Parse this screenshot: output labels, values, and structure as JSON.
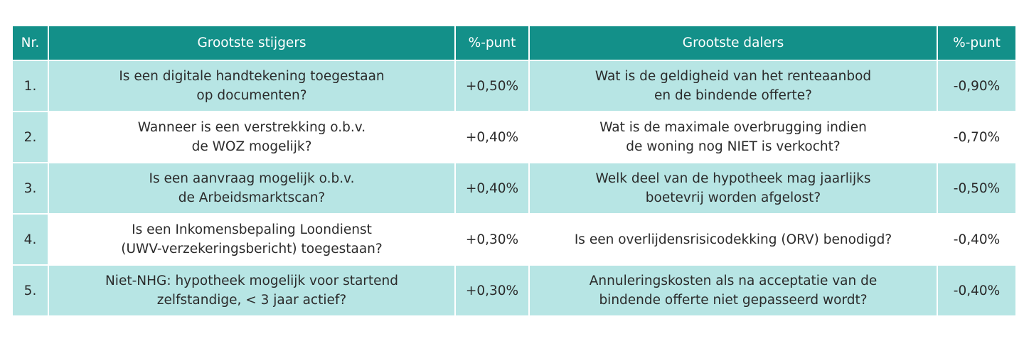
{
  "header": {
    "nr": "Nr.",
    "stijgers": "Grootste stijgers",
    "punt1": "%-punt",
    "dalers": "Grootste dalers",
    "punt2": "%-punt"
  },
  "rows": [
    {
      "nr": "1.",
      "stijger_line1": "Is een digitale handtekening toegestaan",
      "stijger_line2": "op documenten?",
      "stijger_pct": "+0,50%",
      "daler_line1": "Wat is de geldigheid van het renteaanbod",
      "daler_line2": "en de bindende offerte?",
      "daler_pct": "-0,90%"
    },
    {
      "nr": "2.",
      "stijger_line1": "Wanneer is een verstrekking o.b.v.",
      "stijger_line2": "de WOZ mogelijk?",
      "stijger_pct": "+0,40%",
      "daler_line1": "Wat is de maximale overbrugging indien",
      "daler_line2": "de woning nog NIET is verkocht?",
      "daler_pct": "-0,70%"
    },
    {
      "nr": "3.",
      "stijger_line1": "Is een aanvraag mogelijk o.b.v.",
      "stijger_line2": "de Arbeidsmarktscan?",
      "stijger_pct": "+0,40%",
      "daler_line1": "Welk deel van de hypotheek mag jaarlijks",
      "daler_line2": "boetevrij worden afgelost?",
      "daler_pct": "-0,50%"
    },
    {
      "nr": "4.",
      "stijger_line1": "Is een Inkomensbepaling Loondienst",
      "stijger_line2": "(UWV-verzekeringsbericht) toegestaan?",
      "stijger_pct": "+0,30%",
      "daler_line1": "Is een overlijdensrisicodekking (ORV) benodigd?",
      "daler_line2": "",
      "daler_pct": "-0,40%"
    },
    {
      "nr": "5.",
      "stijger_line1": "Niet-NHG: hypotheek mogelijk voor startend",
      "stijger_line2": "zelfstandige, < 3 jaar actief?",
      "stijger_pct": "+0,30%",
      "daler_line1": "Annuleringskosten als na acceptatie van de",
      "daler_line2": "bindende offerte niet gepasseerd wordt?",
      "daler_pct": "-0,40%"
    }
  ],
  "colors": {
    "header_bg": "#139089",
    "band_bg": "#b7e5e4",
    "text": "#2b2b2b"
  }
}
